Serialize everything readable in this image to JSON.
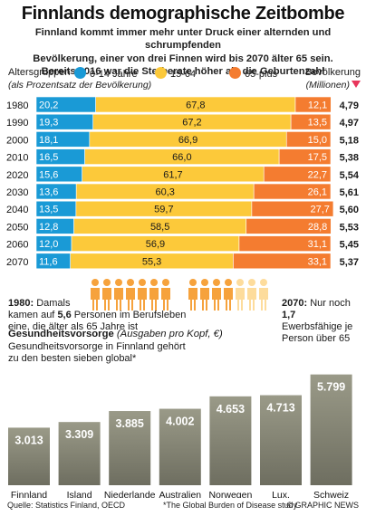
{
  "title": "Finnlands demographische Zeitbombe",
  "subtitle": [
    "Finnland kommt immer mehr unter Druck einer alternden und schrumpfenden",
    "Bevölkerung, einer von drei Finnen wird bis 2070 älter 65 sein.",
    "Bereits 2016 war die Sterberate höher als die Geburtenzahl"
  ],
  "legend": {
    "label": "Altersgruppen",
    "sublabel": "(als Prozentsatz der Bevölkerung)",
    "groups": [
      "0-14 Jahre",
      "15-64",
      "65-plus"
    ],
    "population_label": "Bevölkerung",
    "population_sublabel": "(Millionen)"
  },
  "colors": {
    "young": "#1a9ad6",
    "working": "#fcc93a",
    "old": "#f47c30",
    "pop_text": "#1a1a1a",
    "bar_gray_top": "#9a9a88",
    "bar_gray_bottom": "#6e6e60",
    "people": "#f6a23c",
    "people_light": "#fddc9c",
    "decline_arrow": "#e8365b"
  },
  "chart_data": [
    {
      "type": "bar",
      "stacked": true,
      "orientation": "horizontal",
      "categories": [
        "1980",
        "1990",
        "2000",
        "2010",
        "2020",
        "2030",
        "2040",
        "2050",
        "2060",
        "2070"
      ],
      "series": [
        {
          "name": "0-14 Jahre",
          "values": [
            20.2,
            19.3,
            18.1,
            16.5,
            15.6,
            13.6,
            13.5,
            12.8,
            12.0,
            11.6
          ],
          "labels": [
            "20,2",
            "19,3",
            "18,1",
            "16,5",
            "15,6",
            "13,6",
            "13,5",
            "12,8",
            "12,0",
            "11,6"
          ]
        },
        {
          "name": "15-64",
          "values": [
            67.8,
            67.2,
            66.9,
            66.0,
            61.7,
            60.3,
            59.7,
            58.5,
            56.9,
            55.3
          ],
          "labels": [
            "67,8",
            "67,2",
            "66,9",
            "66,0",
            "61,7",
            "60,3",
            "59,7",
            "58,5",
            "56,9",
            "55,3"
          ]
        },
        {
          "name": "65-plus",
          "values": [
            12.1,
            13.5,
            15.0,
            17.5,
            22.7,
            26.1,
            27.7,
            28.8,
            31.1,
            33.1
          ],
          "labels": [
            "12,1",
            "13,5",
            "15,0",
            "17,5",
            "22,7",
            "26,1",
            "27,7",
            "28,8",
            "31,1",
            "33,1"
          ]
        }
      ],
      "population": [
        "4,79",
        "4,97",
        "5,18",
        "5,38",
        "5,54",
        "5,61",
        "5,60",
        "5,53",
        "5,45",
        "5,37"
      ],
      "xlim": [
        0,
        100
      ]
    },
    {
      "type": "bar",
      "title": "Gesundheitsvorsorge",
      "subtitle": "(Ausgaben pro Kopf, €)",
      "categories": [
        "Finnland",
        "Island",
        "Niederlande",
        "Australien",
        "Norwegen",
        "Lux.",
        "Schweiz"
      ],
      "values": [
        3013,
        3309,
        3885,
        4002,
        4653,
        4713,
        5799
      ],
      "value_labels": [
        "3.013",
        "3.309",
        "3.885",
        "4.002",
        "4.653",
        "4.713",
        "5.799"
      ]
    }
  ],
  "notes": {
    "left_bold": "1980:",
    "left_lines": [
      "Damals",
      "kamen auf",
      "5,6",
      "Personen im Berufsleben",
      "eine, die älter als 65 Jahre ist"
    ],
    "right_bold": "2070:",
    "right_lines": [
      "Nur noch",
      "1,7",
      "Ewerbsfähige je",
      "Person über 65"
    ]
  },
  "health": {
    "title": "Gesundheitsvorsorge",
    "unit": "(Ausgaben pro Kopf, €)",
    "desc": [
      "Gesundheitsvorsorge in Finnland gehört",
      "zu den besten sieben global*"
    ]
  },
  "footer": {
    "source": "Quelle: Statistics Finland, OECD",
    "footnote": "*The Global Burden of Disease study",
    "credit": "© GRAPHIC NEWS"
  }
}
